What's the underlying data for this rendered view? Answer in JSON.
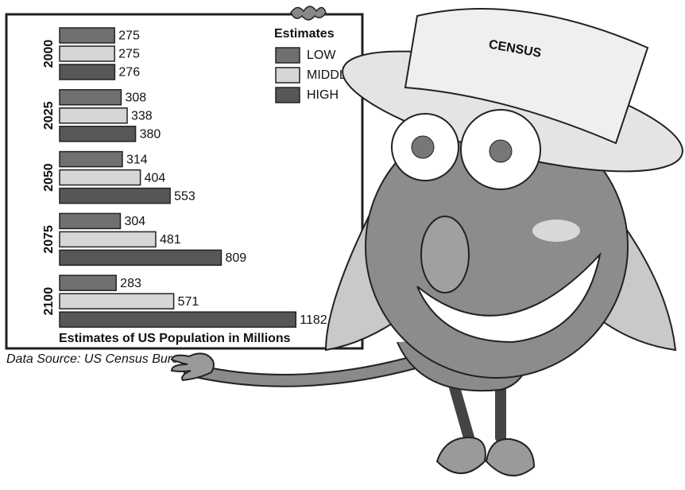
{
  "chart_data": {
    "type": "bar",
    "orientation": "horizontal",
    "legend_title": "Estimates",
    "xlabel": "Estimates of US Population in Millions",
    "source": "Data Source: US Census Bureau",
    "hat_text": "CENSUS",
    "categories": [
      "2000",
      "2025",
      "2050",
      "2075",
      "2100"
    ],
    "series": [
      {
        "name": "LOW",
        "color": "#707070",
        "values": [
          275,
          308,
          314,
          304,
          283
        ]
      },
      {
        "name": "MIDDLE",
        "color": "#d6d6d6",
        "values": [
          275,
          338,
          404,
          481,
          571
        ]
      },
      {
        "name": "HIGH",
        "color": "#575757",
        "values": [
          276,
          380,
          553,
          809,
          1182
        ]
      }
    ]
  }
}
